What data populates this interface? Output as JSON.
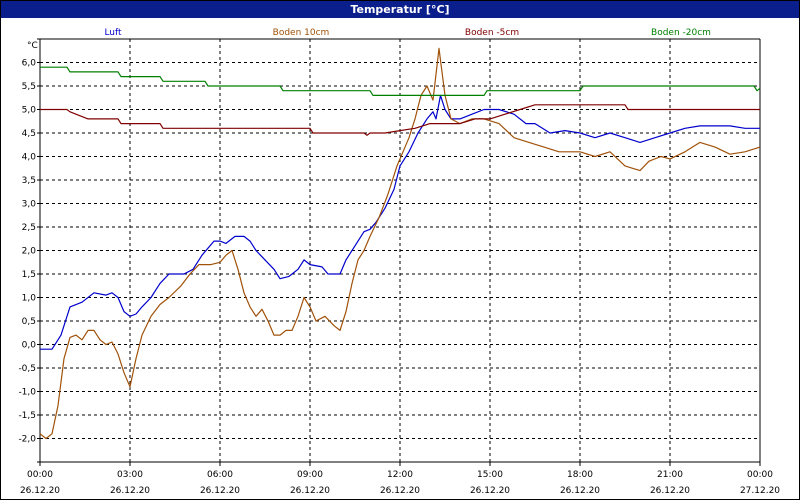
{
  "chart_data": {
    "type": "line",
    "title": "Temperatur [°C]",
    "ylabel": "°C",
    "xlabel": "",
    "ylim": [
      -2.5,
      6.5
    ],
    "yticks": [
      -2.5,
      -2.0,
      -1.5,
      -1.0,
      -0.5,
      0.0,
      0.5,
      1.0,
      1.5,
      2.0,
      2.5,
      3.0,
      3.5,
      4.0,
      4.5,
      5.0,
      5.5,
      6.0,
      6.5
    ],
    "ytick_labels": [
      "",
      "-2,0",
      "-1,5",
      "-1,0",
      "-0,5",
      "0,0",
      "0,5",
      "1,0",
      "1,5",
      "2,0",
      "2,5",
      "3,0",
      "3,5",
      "4,0",
      "4,5",
      "5,0",
      "5,5",
      "6,0",
      ""
    ],
    "xlim": [
      0,
      24
    ],
    "xticks": [
      0,
      3,
      6,
      9,
      12,
      15,
      18,
      21,
      24
    ],
    "xtick_time_labels": [
      "00:00",
      "03:00",
      "06:00",
      "09:00",
      "12:00",
      "15:00",
      "18:00",
      "21:00",
      "00:00"
    ],
    "xtick_date_labels": [
      "26.12.20",
      "26.12.20",
      "26.12.20",
      "26.12.20",
      "26.12.20",
      "26.12.20",
      "26.12.20",
      "26.12.20",
      "27.12.20"
    ],
    "grid": true,
    "legend_position": "top",
    "series": [
      {
        "name": "Luft",
        "color": "#0000cc",
        "points": [
          [
            0,
            -0.1
          ],
          [
            0.4,
            -0.1
          ],
          [
            0.7,
            0.2
          ],
          [
            1.0,
            0.8
          ],
          [
            1.4,
            0.9
          ],
          [
            1.8,
            1.1
          ],
          [
            2.2,
            1.05
          ],
          [
            2.4,
            1.1
          ],
          [
            2.6,
            1.0
          ],
          [
            2.8,
            0.7
          ],
          [
            3.0,
            0.6
          ],
          [
            3.2,
            0.65
          ],
          [
            3.4,
            0.8
          ],
          [
            3.7,
            1.0
          ],
          [
            4.0,
            1.3
          ],
          [
            4.3,
            1.5
          ],
          [
            4.8,
            1.5
          ],
          [
            5.1,
            1.6
          ],
          [
            5.4,
            1.9
          ],
          [
            5.8,
            2.2
          ],
          [
            6.0,
            2.2
          ],
          [
            6.2,
            2.15
          ],
          [
            6.5,
            2.3
          ],
          [
            6.8,
            2.3
          ],
          [
            7.0,
            2.2
          ],
          [
            7.2,
            2.0
          ],
          [
            7.5,
            1.8
          ],
          [
            7.8,
            1.6
          ],
          [
            8.0,
            1.4
          ],
          [
            8.3,
            1.45
          ],
          [
            8.6,
            1.6
          ],
          [
            8.8,
            1.8
          ],
          [
            9.0,
            1.7
          ],
          [
            9.4,
            1.65
          ],
          [
            9.6,
            1.5
          ],
          [
            10.0,
            1.5
          ],
          [
            10.2,
            1.8
          ],
          [
            10.5,
            2.1
          ],
          [
            10.8,
            2.4
          ],
          [
            11.0,
            2.45
          ],
          [
            11.2,
            2.6
          ],
          [
            11.5,
            2.9
          ],
          [
            11.8,
            3.3
          ],
          [
            12.0,
            3.8
          ],
          [
            12.3,
            4.1
          ],
          [
            12.6,
            4.5
          ],
          [
            12.9,
            4.8
          ],
          [
            13.1,
            4.95
          ],
          [
            13.2,
            4.8
          ],
          [
            13.35,
            5.3
          ],
          [
            13.5,
            5.0
          ],
          [
            13.7,
            4.8
          ],
          [
            14.0,
            4.8
          ],
          [
            14.4,
            4.9
          ],
          [
            14.8,
            5.0
          ],
          [
            15.3,
            5.0
          ],
          [
            15.8,
            4.9
          ],
          [
            16.2,
            4.7
          ],
          [
            16.5,
            4.7
          ],
          [
            17.0,
            4.5
          ],
          [
            17.5,
            4.55
          ],
          [
            18.0,
            4.5
          ],
          [
            18.5,
            4.4
          ],
          [
            19.0,
            4.5
          ],
          [
            19.5,
            4.4
          ],
          [
            20.0,
            4.3
          ],
          [
            20.5,
            4.4
          ],
          [
            21.0,
            4.5
          ],
          [
            21.5,
            4.6
          ],
          [
            22.0,
            4.65
          ],
          [
            22.5,
            4.65
          ],
          [
            23.0,
            4.65
          ],
          [
            23.5,
            4.6
          ],
          [
            24.0,
            4.6
          ]
        ]
      },
      {
        "name": "Boden 10cm",
        "color": "#a0520a",
        "points": [
          [
            0,
            -1.9
          ],
          [
            0.2,
            -2.0
          ],
          [
            0.4,
            -1.9
          ],
          [
            0.6,
            -1.3
          ],
          [
            0.8,
            -0.3
          ],
          [
            1.0,
            0.15
          ],
          [
            1.2,
            0.2
          ],
          [
            1.4,
            0.1
          ],
          [
            1.6,
            0.3
          ],
          [
            1.8,
            0.3
          ],
          [
            2.0,
            0.1
          ],
          [
            2.2,
            0.0
          ],
          [
            2.4,
            0.05
          ],
          [
            2.6,
            -0.2
          ],
          [
            2.8,
            -0.6
          ],
          [
            3.0,
            -0.9
          ],
          [
            3.2,
            -0.3
          ],
          [
            3.4,
            0.2
          ],
          [
            3.7,
            0.6
          ],
          [
            4.0,
            0.85
          ],
          [
            4.3,
            1.0
          ],
          [
            4.7,
            1.25
          ],
          [
            5.0,
            1.5
          ],
          [
            5.3,
            1.7
          ],
          [
            5.7,
            1.7
          ],
          [
            6.0,
            1.75
          ],
          [
            6.2,
            1.9
          ],
          [
            6.4,
            2.0
          ],
          [
            6.6,
            1.6
          ],
          [
            6.8,
            1.1
          ],
          [
            7.0,
            0.8
          ],
          [
            7.2,
            0.6
          ],
          [
            7.4,
            0.75
          ],
          [
            7.6,
            0.5
          ],
          [
            7.8,
            0.2
          ],
          [
            8.0,
            0.2
          ],
          [
            8.2,
            0.3
          ],
          [
            8.4,
            0.3
          ],
          [
            8.6,
            0.6
          ],
          [
            8.8,
            1.0
          ],
          [
            9.0,
            0.8
          ],
          [
            9.2,
            0.5
          ],
          [
            9.5,
            0.6
          ],
          [
            9.8,
            0.4
          ],
          [
            10.0,
            0.3
          ],
          [
            10.2,
            0.7
          ],
          [
            10.4,
            1.3
          ],
          [
            10.6,
            1.8
          ],
          [
            10.8,
            2.0
          ],
          [
            11.0,
            2.3
          ],
          [
            11.3,
            2.7
          ],
          [
            11.6,
            3.2
          ],
          [
            11.9,
            3.8
          ],
          [
            12.1,
            4.1
          ],
          [
            12.3,
            4.4
          ],
          [
            12.5,
            4.8
          ],
          [
            12.7,
            5.3
          ],
          [
            12.9,
            5.5
          ],
          [
            13.1,
            5.2
          ],
          [
            13.3,
            6.3
          ],
          [
            13.5,
            5.3
          ],
          [
            13.7,
            4.8
          ],
          [
            14.0,
            4.7
          ],
          [
            14.4,
            4.8
          ],
          [
            14.8,
            4.8
          ],
          [
            15.3,
            4.7
          ],
          [
            15.8,
            4.4
          ],
          [
            16.3,
            4.3
          ],
          [
            16.8,
            4.2
          ],
          [
            17.3,
            4.1
          ],
          [
            18.0,
            4.1
          ],
          [
            18.5,
            4.0
          ],
          [
            19.0,
            4.1
          ],
          [
            19.5,
            3.8
          ],
          [
            20.0,
            3.7
          ],
          [
            20.3,
            3.9
          ],
          [
            20.7,
            4.0
          ],
          [
            21.0,
            3.95
          ],
          [
            21.5,
            4.1
          ],
          [
            22.0,
            4.3
          ],
          [
            22.5,
            4.2
          ],
          [
            23.0,
            4.05
          ],
          [
            23.5,
            4.1
          ],
          [
            24.0,
            4.2
          ]
        ]
      },
      {
        "name": "Boden -5cm",
        "color": "#800000",
        "points": [
          [
            0,
            5.0
          ],
          [
            0.9,
            5.0
          ],
          [
            1.0,
            4.95
          ],
          [
            1.6,
            4.8
          ],
          [
            2.6,
            4.8
          ],
          [
            2.7,
            4.7
          ],
          [
            4.0,
            4.7
          ],
          [
            4.1,
            4.6
          ],
          [
            9.0,
            4.6
          ],
          [
            9.1,
            4.5
          ],
          [
            10.8,
            4.5
          ],
          [
            10.9,
            4.45
          ],
          [
            11.0,
            4.5
          ],
          [
            11.5,
            4.5
          ],
          [
            12.0,
            4.55
          ],
          [
            12.5,
            4.6
          ],
          [
            13.0,
            4.7
          ],
          [
            14.0,
            4.7
          ],
          [
            14.5,
            4.8
          ],
          [
            15.0,
            4.8
          ],
          [
            15.5,
            4.9
          ],
          [
            16.0,
            5.0
          ],
          [
            16.5,
            5.1
          ],
          [
            18.0,
            5.1
          ],
          [
            19.5,
            5.1
          ],
          [
            19.6,
            5.0
          ],
          [
            24.0,
            5.0
          ]
        ]
      },
      {
        "name": "Boden -20cm",
        "color": "#008000",
        "points": [
          [
            0,
            5.9
          ],
          [
            0.9,
            5.9
          ],
          [
            1.0,
            5.8
          ],
          [
            2.6,
            5.8
          ],
          [
            2.7,
            5.7
          ],
          [
            4.0,
            5.7
          ],
          [
            4.1,
            5.6
          ],
          [
            5.5,
            5.6
          ],
          [
            5.6,
            5.5
          ],
          [
            8.0,
            5.5
          ],
          [
            8.1,
            5.4
          ],
          [
            11.0,
            5.4
          ],
          [
            11.1,
            5.3
          ],
          [
            14.8,
            5.3
          ],
          [
            14.9,
            5.4
          ],
          [
            18.0,
            5.4
          ],
          [
            18.1,
            5.5
          ],
          [
            23.8,
            5.5
          ],
          [
            23.9,
            5.4
          ],
          [
            24.0,
            5.45
          ]
        ]
      }
    ]
  }
}
